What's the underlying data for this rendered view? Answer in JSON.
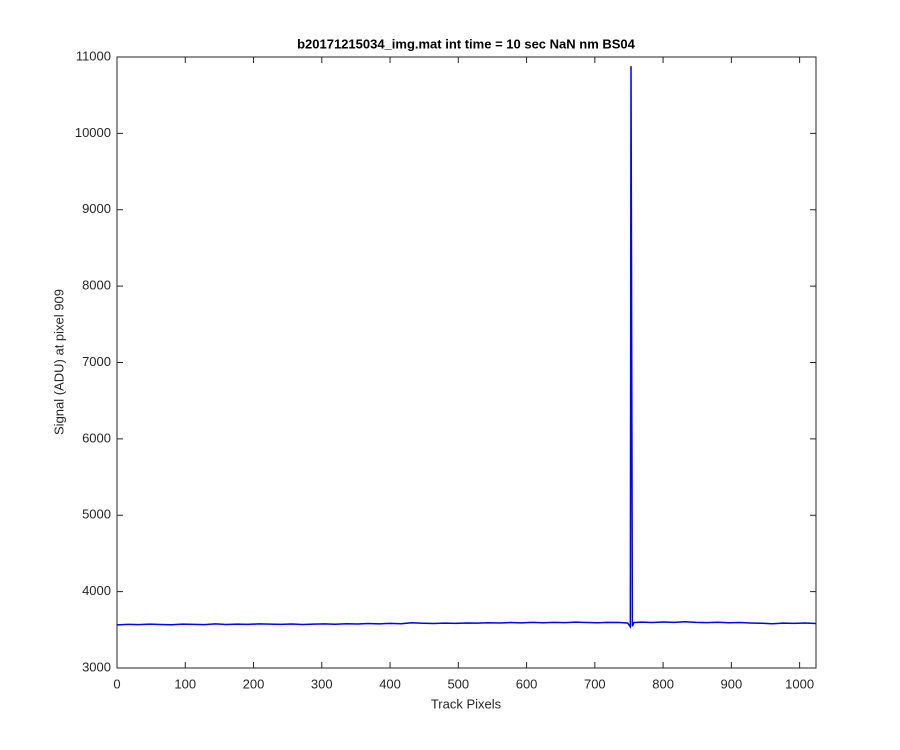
{
  "chart_data": {
    "type": "line",
    "title": "b20171215034_img.mat int time = 10 sec  NaN nm BS04",
    "x_label": "Track Pixels",
    "y_label": "Signal (ADU) at pixel 909",
    "color": "#0000ff",
    "x": [
      0,
      16,
      32,
      48,
      64,
      80,
      96,
      112,
      128,
      144,
      160,
      176,
      192,
      208,
      224,
      240,
      256,
      272,
      288,
      304,
      320,
      336,
      352,
      368,
      384,
      400,
      416,
      432,
      448,
      464,
      480,
      496,
      512,
      528,
      544,
      560,
      576,
      592,
      608,
      624,
      640,
      656,
      672,
      688,
      704,
      720,
      736,
      748,
      752,
      753,
      755,
      757,
      768,
      784,
      800,
      816,
      832,
      848,
      864,
      880,
      896,
      912,
      928,
      944,
      960,
      976,
      992,
      1008,
      1024
    ],
    "values": [
      3565,
      3572,
      3568,
      3575,
      3570,
      3566,
      3574,
      3571,
      3568,
      3577,
      3570,
      3574,
      3572,
      3578,
      3575,
      3571,
      3576,
      3569,
      3574,
      3577,
      3573,
      3579,
      3576,
      3582,
      3578,
      3584,
      3580,
      3592,
      3586,
      3583,
      3588,
      3585,
      3590,
      3587,
      3593,
      3589,
      3595,
      3591,
      3597,
      3592,
      3598,
      3594,
      3600,
      3596,
      3593,
      3598,
      3595,
      3590,
      3540,
      10880,
      3545,
      3595,
      3600,
      3596,
      3602,
      3598,
      3605,
      3597,
      3594,
      3599,
      3592,
      3595,
      3590,
      3586,
      3580,
      3588,
      3584,
      3590,
      3583
    ],
    "xlim": [
      0,
      1024
    ],
    "ylim": [
      3000,
      11000
    ],
    "xticks": [
      0,
      100,
      200,
      300,
      400,
      500,
      600,
      700,
      800,
      900,
      1000
    ],
    "yticks": [
      3000,
      4000,
      5000,
      6000,
      7000,
      8000,
      9000,
      10000,
      11000
    ]
  }
}
